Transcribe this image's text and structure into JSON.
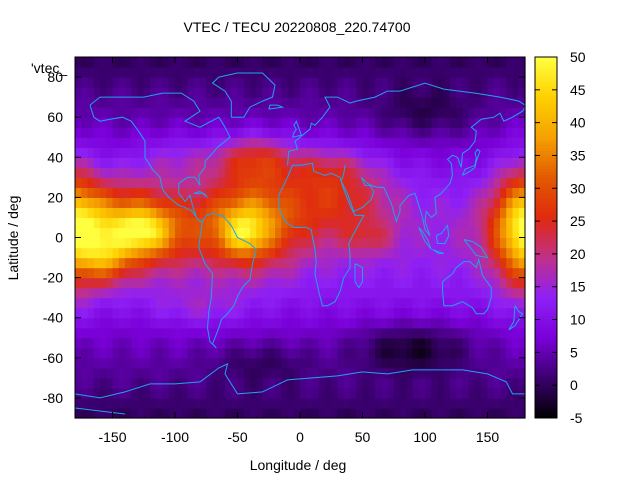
{
  "chart_data": {
    "type": "heatmap",
    "title": "VTEC / TECU 20220808_220.74700",
    "xlabel": "Longitude / deg",
    "ylabel": "Latitude / deg",
    "xlim": [
      -180,
      180
    ],
    "ylim": [
      -90,
      90
    ],
    "x_ticks": [
      -150,
      -100,
      -50,
      0,
      50,
      100,
      150
    ],
    "y_ticks": [
      -80,
      -60,
      -40,
      -20,
      0,
      20,
      40,
      60,
      80
    ],
    "colorbar": {
      "range": [
        -5,
        50
      ],
      "ticks": [
        -5,
        0,
        5,
        10,
        15,
        20,
        25,
        30,
        35,
        40,
        45,
        50
      ],
      "palette_stops": [
        "#000000",
        "#3a006e",
        "#7a00d8",
        "#8e20f6",
        "#c0308a",
        "#e02a10",
        "#e25a00",
        "#f5a000",
        "#ffd000",
        "#ffff40"
      ]
    },
    "legend_entry": "'vtec_",
    "coastline_color": "#1fa3f0",
    "features": [
      {
        "lon": -140,
        "lat": 5,
        "amp": 27,
        "sx": 55,
        "sy": 20
      },
      {
        "lon": -125,
        "lat": 3,
        "amp": 13,
        "sx": 20,
        "sy": 10
      },
      {
        "lon": -155,
        "lat": -10,
        "amp": 12,
        "sx": 18,
        "sy": 12
      },
      {
        "lon": -40,
        "lat": 8,
        "amp": 24,
        "sx": 38,
        "sy": 22
      },
      {
        "lon": -45,
        "lat": 2,
        "amp": 12,
        "sx": 16,
        "sy": 10
      },
      {
        "lon": -35,
        "lat": 40,
        "amp": 14,
        "sx": 30,
        "sy": 12
      },
      {
        "lon": 30,
        "lat": 18,
        "amp": 12,
        "sx": 45,
        "sy": 20
      },
      {
        "lon": 20,
        "lat": 35,
        "amp": 8,
        "sx": 35,
        "sy": 12
      },
      {
        "lon": 55,
        "lat": 0,
        "amp": 6,
        "sx": 20,
        "sy": 8
      },
      {
        "lon": 178,
        "lat": 5,
        "amp": 22,
        "sx": 22,
        "sy": 30
      },
      {
        "lon": -95,
        "lat": 40,
        "amp": 6,
        "sx": 40,
        "sy": 12
      },
      {
        "lon": -80,
        "lat": -35,
        "amp": 5,
        "sx": 40,
        "sy": 10
      },
      {
        "lon": 90,
        "lat": -55,
        "amp": -8,
        "sx": 45,
        "sy": 12
      },
      {
        "lon": 100,
        "lat": 62,
        "amp": -5,
        "sx": 40,
        "sy": 12
      },
      {
        "lon": -30,
        "lat": -62,
        "amp": -4,
        "sx": 40,
        "sy": 10
      }
    ],
    "background_value": 14,
    "background_decay": {
      "lat_scale": 45,
      "drop": 7
    }
  }
}
